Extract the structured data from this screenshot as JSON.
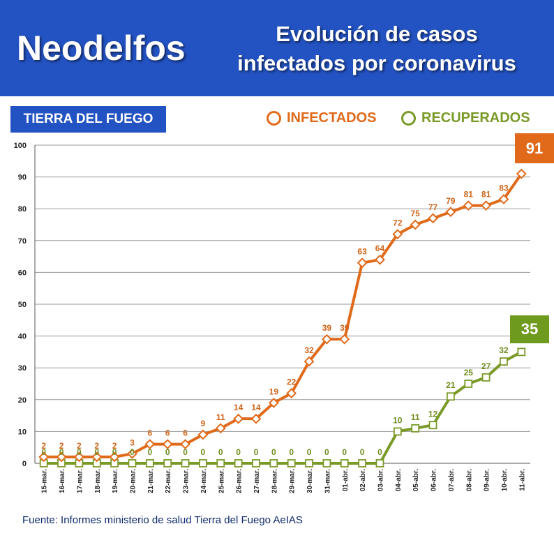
{
  "header": {
    "brand": "Neodelfos",
    "title_line1": "Evolución de casos",
    "title_line2": "infectados por coronavirus"
  },
  "region_label": "TIERRA DEL FUEGO",
  "legend": {
    "infected": "INFECTADOS",
    "recovered": "RECUPERADOS"
  },
  "badges": {
    "infected_last": "91",
    "recovered_last": "35"
  },
  "source": "Fuente: Informes ministerio de salud Tierra del Fuego AeIAS",
  "colors": {
    "brand_blue": "#2352c2",
    "infected": "#e06a1a",
    "recovered": "#7a9a28"
  },
  "chart_data": {
    "type": "line",
    "categories": [
      "15-mar.",
      "16-mar.",
      "17-mar.",
      "18-mar.",
      "19-mar.",
      "20-mar.",
      "21-mar.",
      "22-mar.",
      "23-mar.",
      "24-mar.",
      "25-mar.",
      "26-mar.",
      "27-mar.",
      "28-mar.",
      "29-mar.",
      "30-mar.",
      "31-mar.",
      "01-abr.",
      "02-abr.",
      "03-abr.",
      "04-abr.",
      "05-abr.",
      "06-abr.",
      "07-abr.",
      "08-abr.",
      "09-abr.",
      "10-abr.",
      "11-abr."
    ],
    "series": [
      {
        "name": "INFECTADOS",
        "values": [
          2,
          2,
          2,
          2,
          2,
          3,
          6,
          6,
          6,
          9,
          11,
          14,
          14,
          19,
          22,
          32,
          39,
          39,
          63,
          64,
          72,
          75,
          77,
          79,
          81,
          81,
          83,
          91
        ]
      },
      {
        "name": "RECUPERADOS",
        "values": [
          0,
          0,
          0,
          0,
          0,
          0,
          0,
          0,
          0,
          0,
          0,
          0,
          0,
          0,
          0,
          0,
          0,
          0,
          0,
          0,
          10,
          11,
          12,
          21,
          25,
          27,
          32,
          35
        ]
      }
    ],
    "y_ticks": [
      0,
      10,
      20,
      30,
      40,
      50,
      60,
      70,
      80,
      90,
      100
    ],
    "ylim": [
      0,
      100
    ],
    "grid": true,
    "legend_position": "top-right"
  }
}
